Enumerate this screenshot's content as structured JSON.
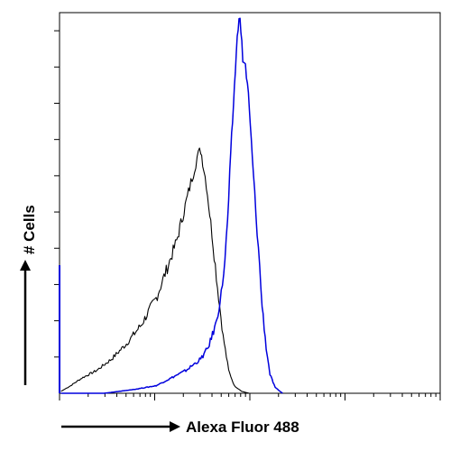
{
  "chart_data": {
    "type": "line",
    "title": "",
    "xlabel": "Alexa Fluor 488",
    "ylabel": "# Cells",
    "xlim": [
      0,
      1024
    ],
    "ylim": [
      0,
      100
    ],
    "log_x": true,
    "grid": false,
    "legend": "none",
    "series": [
      {
        "color": "#000000",
        "points": [
          [
            4,
            0.5
          ],
          [
            30,
            2
          ],
          [
            60,
            4
          ],
          [
            100,
            6
          ],
          [
            140,
            9
          ],
          [
            180,
            13
          ],
          [
            220,
            18
          ],
          [
            260,
            25
          ],
          [
            290,
            33
          ],
          [
            315,
            40
          ],
          [
            335,
            48
          ],
          [
            350,
            54
          ],
          [
            360,
            58
          ],
          [
            370,
            62
          ],
          [
            380,
            64
          ],
          [
            385,
            61
          ],
          [
            395,
            55
          ],
          [
            410,
            42
          ],
          [
            425,
            28
          ],
          [
            440,
            15
          ],
          [
            455,
            6
          ],
          [
            470,
            2
          ],
          [
            490,
            0.5
          ],
          [
            510,
            0
          ]
        ]
      },
      {
        "color": "#0000dd",
        "points": [
          [
            4,
            0
          ],
          [
            120,
            0
          ],
          [
            200,
            1
          ],
          [
            260,
            2
          ],
          [
            300,
            4
          ],
          [
            340,
            6
          ],
          [
            380,
            9
          ],
          [
            400,
            12
          ],
          [
            420,
            18
          ],
          [
            435,
            26
          ],
          [
            445,
            35
          ],
          [
            452,
            45
          ],
          [
            458,
            57
          ],
          [
            463,
            67
          ],
          [
            468,
            76
          ],
          [
            473,
            85
          ],
          [
            478,
            93
          ],
          [
            483,
            100
          ],
          [
            488,
            95
          ],
          [
            493,
            88
          ],
          [
            500,
            86
          ],
          [
            508,
            78
          ],
          [
            516,
            66
          ],
          [
            525,
            52
          ],
          [
            535,
            38
          ],
          [
            545,
            23
          ],
          [
            556,
            12
          ],
          [
            566,
            5
          ],
          [
            580,
            1.5
          ],
          [
            600,
            0
          ]
        ]
      }
    ]
  }
}
